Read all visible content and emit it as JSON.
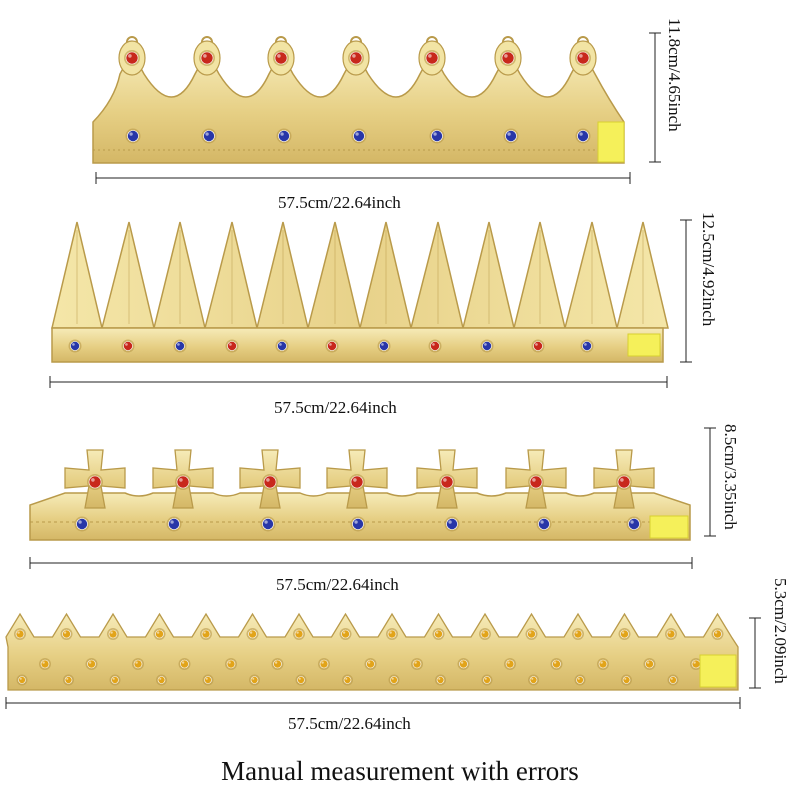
{
  "colors": {
    "gold_light": "#f2e4a4",
    "gold_mid": "#e0c877",
    "gold_dark": "#b99a4a",
    "velcro": "#f5f05a",
    "gem_red": "#c8281c",
    "gem_blue": "#2836a8",
    "gem_gold": "#e2a41a",
    "line": "#222222"
  },
  "crowns": [
    {
      "style": "arch-points",
      "width_label": "57.5cm/22.64inch",
      "height_label": "11.8cm/4.65inch",
      "gem_icon_top": "red-gem-icon",
      "gem_icon_bottom": "blue-gem-icon"
    },
    {
      "style": "spikes",
      "width_label": "57.5cm/22.64inch",
      "height_label": "12.5cm/4.92inch",
      "gem_icon_top": "",
      "gem_icon_bottom": "alternating-blue-red-gem-icon"
    },
    {
      "style": "crosses",
      "width_label": "57.5cm/22.64inch",
      "height_label": "8.5cm/3.35inch",
      "gem_icon_top": "red-gem-icon",
      "gem_icon_bottom": "blue-gem-icon"
    },
    {
      "style": "small-points",
      "width_label": "57.5cm/22.64inch",
      "height_label": "5.3cm/2.09inch",
      "gem_icon_top": "gold-gem-icon",
      "gem_icon_bottom": "gold-gem-icon"
    }
  ],
  "footer": "Manual measurement with errors"
}
